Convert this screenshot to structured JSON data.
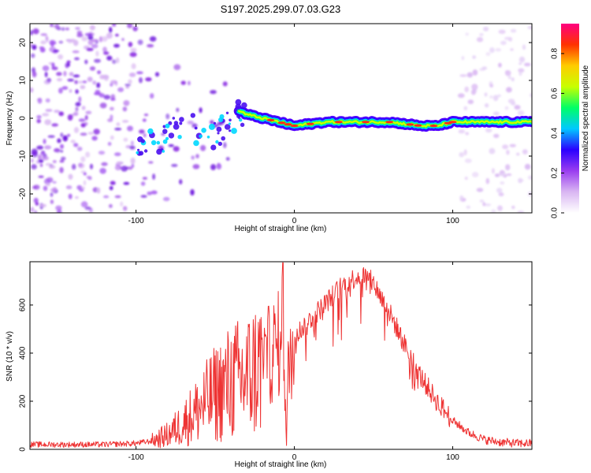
{
  "title": "S197.2025.299.07.03.G23",
  "chart_data": [
    {
      "type": "heatmap",
      "xlabel": "Height of straight line (km)",
      "ylabel": "Frequency (Hz)",
      "xlim": [
        -167,
        150
      ],
      "ylim": [
        -25,
        25
      ],
      "xticks": [
        -100,
        0,
        100
      ],
      "yticks": [
        -20,
        -10,
        0,
        10,
        20
      ],
      "colorbar": {
        "label": "Normalized spectral amplitude",
        "range": [
          0,
          0.95
        ],
        "ticks": [
          "0.0",
          "0.2",
          "0.4",
          "0.6",
          "0.8"
        ],
        "colors": [
          "#ffffff",
          "#d9b6f2",
          "#9a3df0",
          "#2a00ff",
          "#00c8ff",
          "#00ff66",
          "#c8ff00",
          "#ffcc00",
          "#ff3300",
          "#ff0080"
        ]
      },
      "ridge": {
        "x": [
          -100,
          -90,
          -80,
          -70,
          -60,
          -50,
          -40,
          -35,
          -30,
          -20,
          -10,
          0,
          20,
          40,
          60,
          80,
          90,
          100,
          120,
          150
        ],
        "y": [
          -7,
          -6,
          -5,
          -2,
          -3,
          -5,
          -1,
          2,
          1,
          0,
          -1,
          -2,
          -1,
          -1,
          -1,
          -2,
          -2,
          -1,
          -1,
          -1
        ]
      }
    },
    {
      "type": "line",
      "xlabel": "Height of straight line (km)",
      "ylabel": "SNR (10 * v/v)",
      "xlim": [
        -167,
        150
      ],
      "ylim": [
        0,
        780
      ],
      "xticks": [
        -100,
        0,
        100
      ],
      "yticks": [
        0,
        200,
        400,
        600
      ],
      "series": [
        {
          "name": "SNR",
          "color": "#ee3333",
          "x": [
            -167,
            -140,
            -120,
            -100,
            -90,
            -80,
            -70,
            -60,
            -50,
            -40,
            -30,
            -25,
            -20,
            -15,
            -10,
            -8,
            -6,
            -5,
            -4,
            -2,
            0,
            10,
            20,
            30,
            40,
            45,
            50,
            60,
            70,
            80,
            90,
            100,
            110,
            120,
            130,
            140,
            150
          ],
          "y": [
            20,
            20,
            20,
            25,
            35,
            60,
            110,
            170,
            230,
            280,
            300,
            330,
            360,
            400,
            430,
            740,
            300,
            0,
            300,
            430,
            470,
            540,
            610,
            680,
            720,
            720,
            690,
            570,
            430,
            300,
            200,
            120,
            70,
            40,
            30,
            25,
            25
          ]
        }
      ]
    }
  ]
}
